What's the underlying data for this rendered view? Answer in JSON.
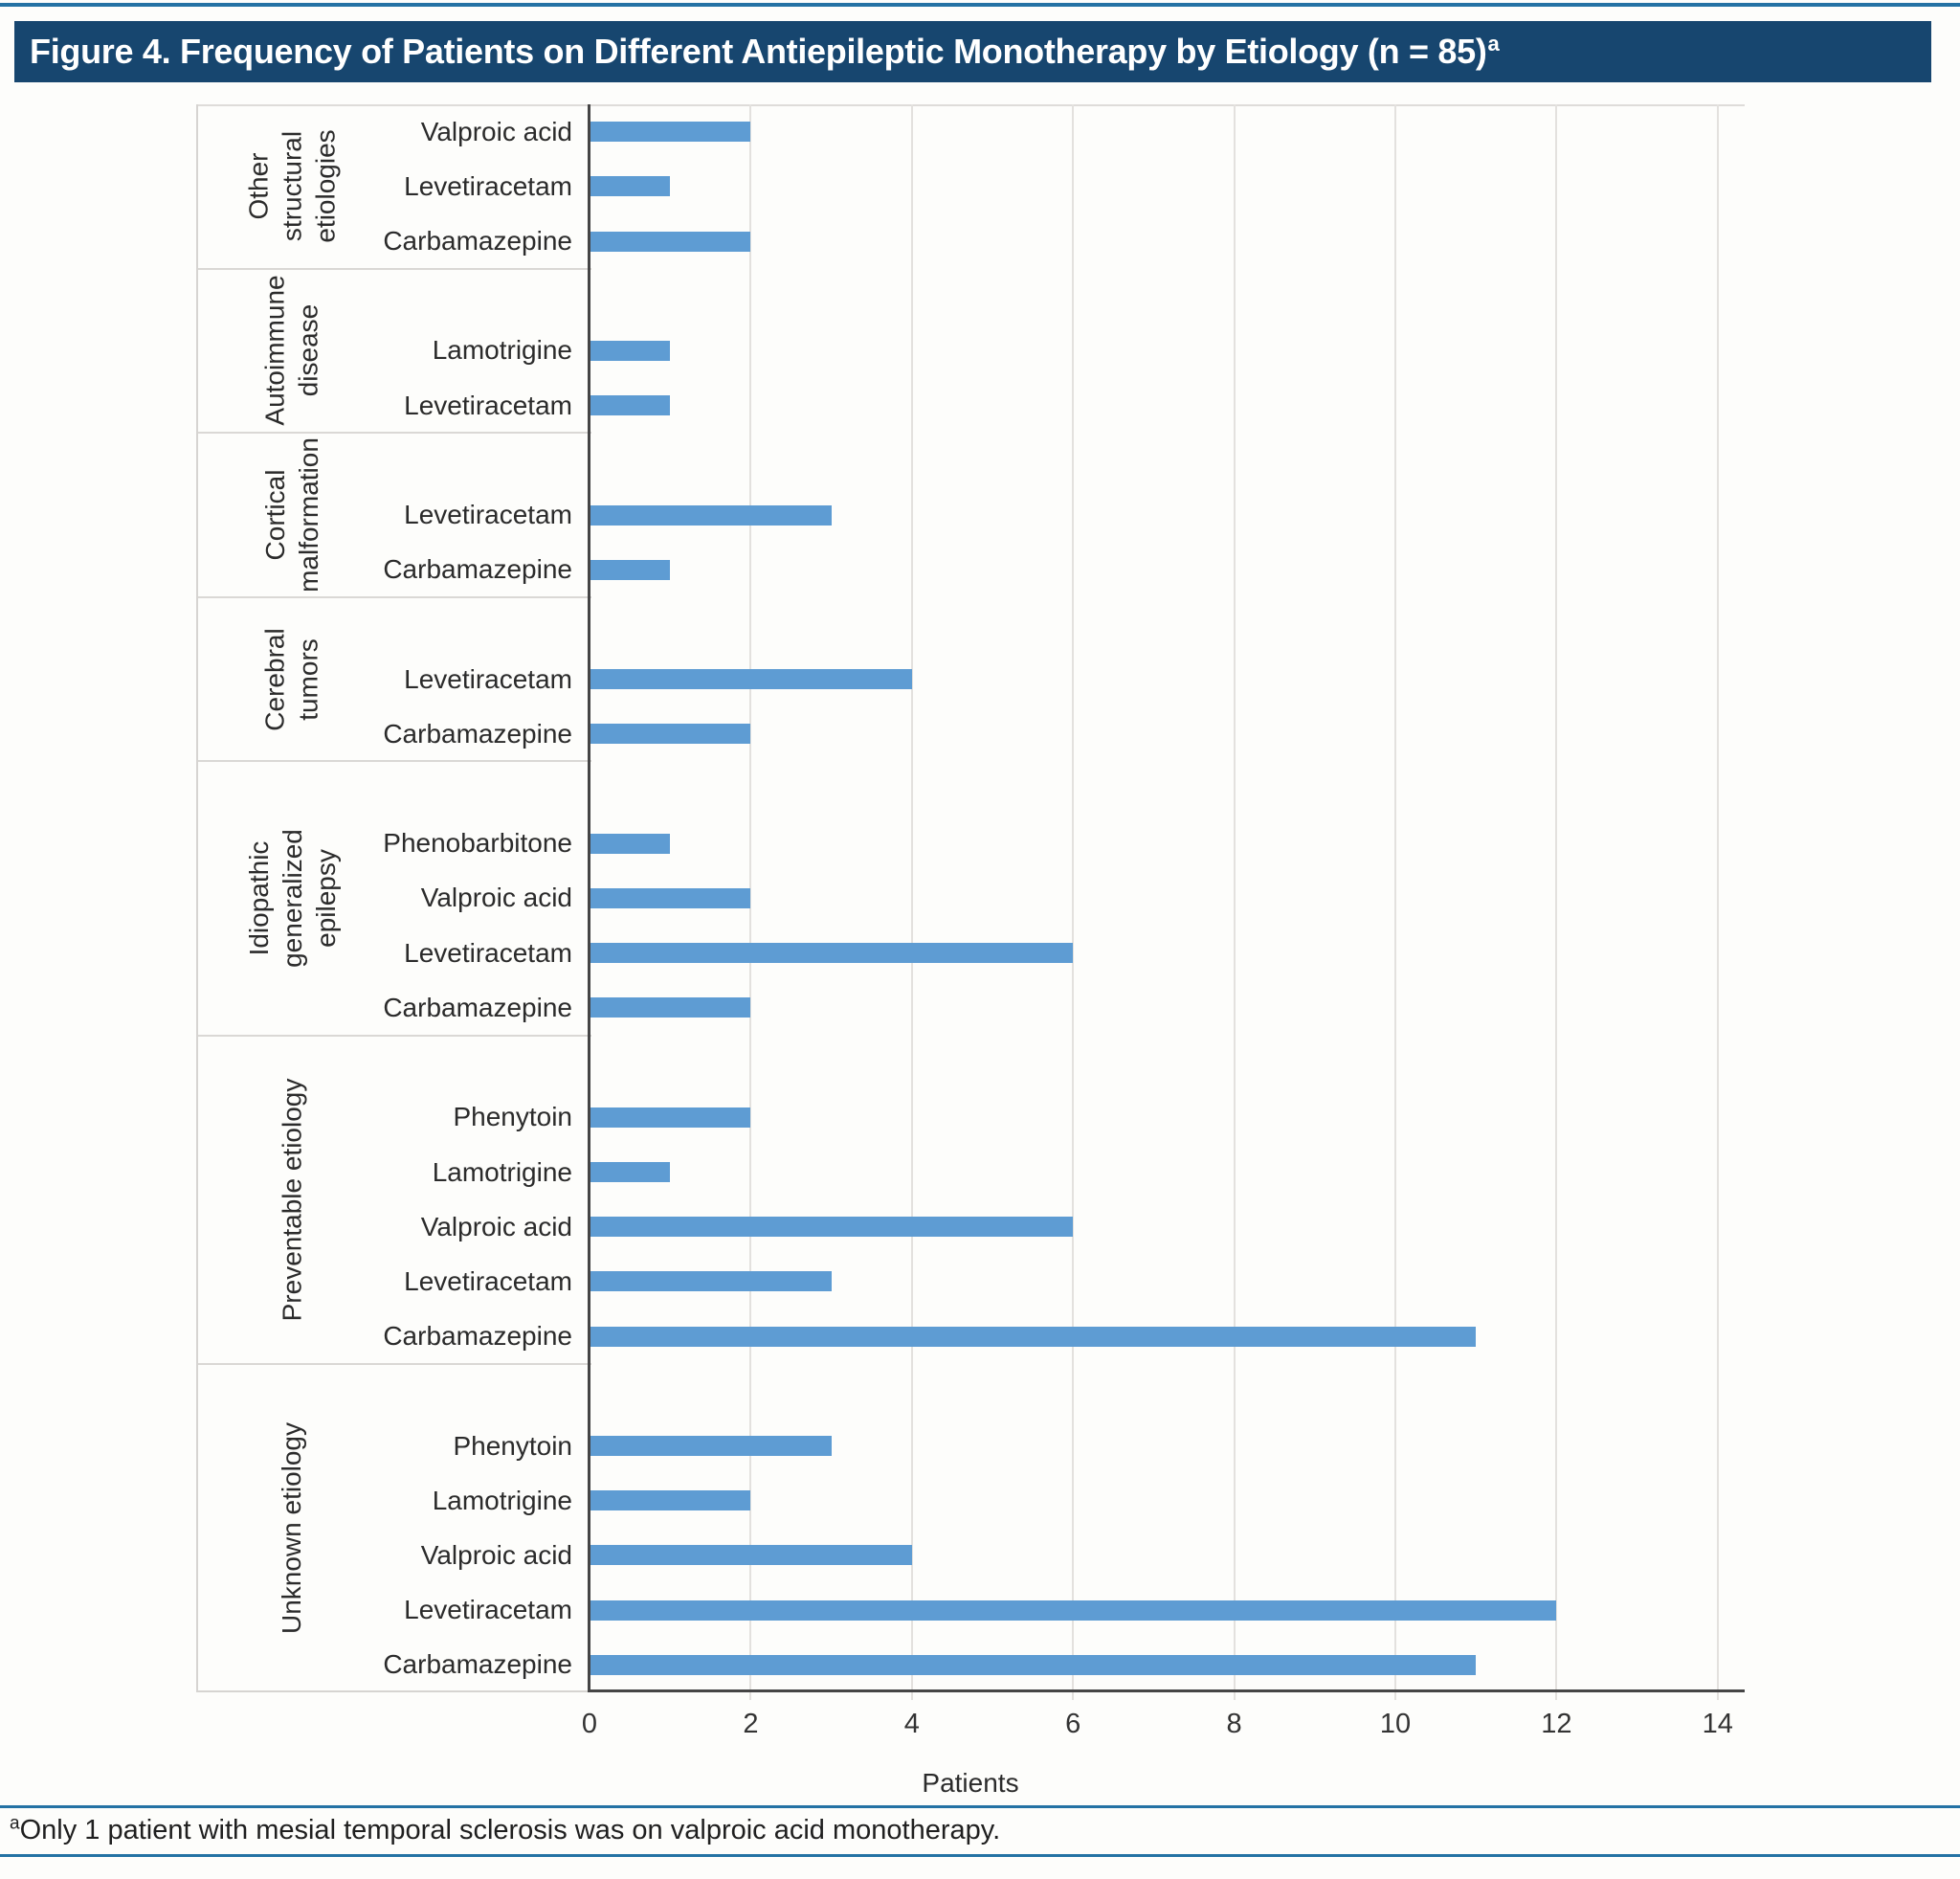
{
  "title": {
    "text": "Figure 4. Frequency of Patients on Different Antiepileptic Monotherapy by Etiology (n = 85)",
    "superscript": "a"
  },
  "footnote": {
    "superscript": "a",
    "text": "Only 1 patient with mesial temporal sclerosis was on valproic acid monotherapy."
  },
  "colors": {
    "title_bar_bg": "#17466F",
    "title_text": "#FFFFFF",
    "bar_fill": "#5E9CD3",
    "blue_rule": "#2472A4",
    "axis_line": "#454545",
    "gridline": "#E3E1DE"
  },
  "chart_data": {
    "type": "bar",
    "orientation": "horizontal",
    "title": "Figure 4. Frequency of Patients on Different Antiepileptic Monotherapy by Etiology (n = 85)",
    "xlabel": "Patients",
    "ylabel": "",
    "x_ticks": [
      0,
      2,
      4,
      6,
      8,
      10,
      12,
      14
    ],
    "xlim": [
      0,
      14.3
    ],
    "grid": true,
    "legend": "none",
    "groups": [
      {
        "etiology": "Other structural etiologies",
        "label_lines": [
          "Other",
          "structural",
          "etiologies"
        ],
        "bars": [
          {
            "drug": "Valproic acid",
            "value": 2
          },
          {
            "drug": "Levetiracetam",
            "value": 1
          },
          {
            "drug": "Carbamazepine",
            "value": 2
          }
        ]
      },
      {
        "etiology": "Autoimmune disease",
        "label_lines": [
          "Autoimmune",
          "disease"
        ],
        "bars": [
          {
            "drug": "Lamotrigine",
            "value": 1
          },
          {
            "drug": "Levetiracetam",
            "value": 1
          }
        ]
      },
      {
        "etiology": "Cortical malformation",
        "label_lines": [
          "Cortical",
          "malformation"
        ],
        "bars": [
          {
            "drug": "Levetiracetam",
            "value": 3
          },
          {
            "drug": "Carbamazepine",
            "value": 1
          }
        ]
      },
      {
        "etiology": "Cerebral tumors",
        "label_lines": [
          "Cerebral",
          "tumors"
        ],
        "bars": [
          {
            "drug": "Levetiracetam",
            "value": 4
          },
          {
            "drug": "Carbamazepine",
            "value": 2
          }
        ]
      },
      {
        "etiology": "Idiopathic generalized epilepsy",
        "label_lines": [
          "Idiopathic",
          "generalized",
          "epilepsy"
        ],
        "bars": [
          {
            "drug": "Phenobarbitone",
            "value": 1
          },
          {
            "drug": "Valproic acid",
            "value": 2
          },
          {
            "drug": "Levetiracetam",
            "value": 6
          },
          {
            "drug": "Carbamazepine",
            "value": 2
          }
        ]
      },
      {
        "etiology": "Preventable etiology",
        "label_lines": [
          "Preventable etiology"
        ],
        "bars": [
          {
            "drug": "Phenytoin",
            "value": 2
          },
          {
            "drug": "Lamotrigine",
            "value": 1
          },
          {
            "drug": "Valproic acid",
            "value": 6
          },
          {
            "drug": "Levetiracetam",
            "value": 3
          },
          {
            "drug": "Carbamazepine",
            "value": 11
          }
        ]
      },
      {
        "etiology": "Unknown etiology",
        "label_lines": [
          "Unknown etiology"
        ],
        "bars": [
          {
            "drug": "Phenytoin",
            "value": 3
          },
          {
            "drug": "Lamotrigine",
            "value": 2
          },
          {
            "drug": "Valproic acid",
            "value": 4
          },
          {
            "drug": "Levetiracetam",
            "value": 12
          },
          {
            "drug": "Carbamazepine",
            "value": 11
          }
        ]
      }
    ]
  }
}
